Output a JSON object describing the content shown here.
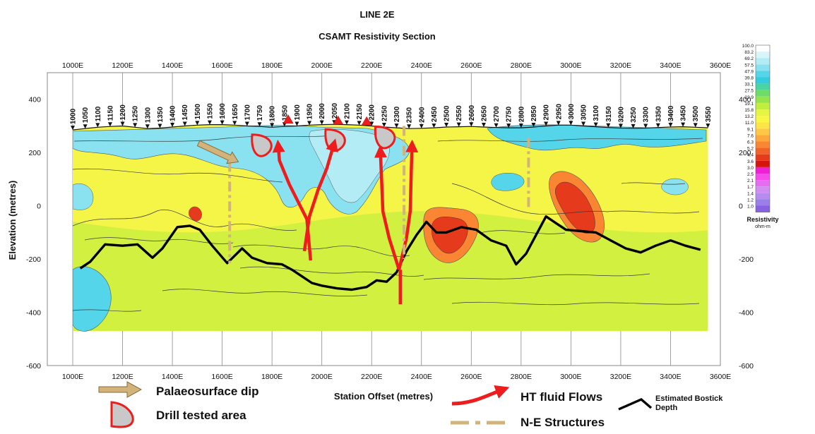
{
  "chart_data": {
    "type": "heatmap",
    "title": "LINE 2E",
    "subtitle": "CSAMT Resistivity Section",
    "xlabel": "Station Offset (metres)",
    "ylabel": "Elevation (metres)",
    "xlim": [
      1000,
      3600
    ],
    "ylim": [
      -600,
      500
    ],
    "xticks": [
      1000,
      1200,
      1400,
      1600,
      1800,
      2000,
      2200,
      2400,
      2600,
      2800,
      3000,
      3200,
      3400,
      3600
    ],
    "xtick_labels": [
      "1000E",
      "1200E",
      "1400E",
      "1600E",
      "1800E",
      "2000E",
      "2200E",
      "2400E",
      "2600E",
      "2800E",
      "3000E",
      "3200E",
      "3400E",
      "3600E"
    ],
    "yticks": [
      400,
      200,
      0,
      -200,
      -400,
      -600
    ],
    "ytick_labels": [
      "400",
      "200",
      "0",
      "-200",
      "-400",
      "-600"
    ],
    "stations": [
      1000,
      1050,
      1100,
      1150,
      1200,
      1250,
      1300,
      1350,
      1400,
      1450,
      1500,
      1550,
      1600,
      1650,
      1700,
      1750,
      1800,
      1850,
      1900,
      1950,
      2000,
      2050,
      2100,
      2150,
      2200,
      2250,
      2300,
      2350,
      2400,
      2450,
      2500,
      2550,
      2600,
      2650,
      2700,
      2750,
      2800,
      2850,
      2900,
      2950,
      3000,
      3050,
      3100,
      3150,
      3200,
      3250,
      3300,
      3350,
      3400,
      3450,
      3500,
      3550
    ],
    "surface_elevation": [
      285,
      290,
      295,
      298,
      300,
      295,
      290,
      292,
      296,
      300,
      303,
      305,
      305,
      303,
      300,
      298,
      295,
      298,
      300,
      303,
      305,
      306,
      305,
      303,
      300,
      296,
      293,
      290,
      291,
      293,
      296,
      297,
      298,
      296,
      294,
      293,
      293,
      296,
      300,
      303,
      303,
      300,
      297,
      294,
      292,
      291,
      292,
      294,
      296,
      297,
      295,
      293
    ],
    "estimated_bostick_depth": {
      "name": "Estimated Bostick Depth",
      "x": [
        1030,
        1070,
        1130,
        1200,
        1260,
        1320,
        1360,
        1420,
        1470,
        1510,
        1560,
        1620,
        1680,
        1720,
        1780,
        1840,
        1880,
        1920,
        1960,
        2000,
        2060,
        2120,
        2180,
        2220,
        2260,
        2300,
        2340,
        2380,
        2420,
        2460,
        2500,
        2560,
        2620,
        2680,
        2740,
        2780,
        2820,
        2860,
        2900,
        2940,
        2980,
        3040,
        3100,
        3160,
        3220,
        3280,
        3340,
        3400,
        3460,
        3520
      ],
      "y": [
        -235,
        -210,
        -145,
        -150,
        -145,
        -195,
        -160,
        -80,
        -75,
        -90,
        -150,
        -215,
        -160,
        -195,
        -215,
        -220,
        -240,
        -265,
        -290,
        -300,
        -310,
        -315,
        -305,
        -280,
        -285,
        -250,
        -170,
        -110,
        -60,
        -100,
        -100,
        -80,
        -90,
        -130,
        -150,
        -220,
        -180,
        -110,
        -40,
        -65,
        -90,
        -95,
        -100,
        -130,
        -160,
        -175,
        -150,
        -130,
        -150,
        -165
      ]
    },
    "colorbar": {
      "title": "Resistivity",
      "unit": "ohm-m",
      "labels": [
        "100.0",
        "83.2",
        "69.2",
        "57.5",
        "47.9",
        "39.8",
        "33.1",
        "27.5",
        "22.9",
        "19.1",
        "15.8",
        "13.2",
        "11.0",
        "9.1",
        "7.6",
        "6.3",
        "5.2",
        "4.4",
        "3.6",
        "3.0",
        "2.5",
        "2.1",
        "1.7",
        "1.4",
        "1.2",
        "1.0"
      ],
      "colors": [
        "#ffffff",
        "#d8f5fb",
        "#b4ecf6",
        "#8ae2f0",
        "#55d5ea",
        "#33cbdd",
        "#4ad49f",
        "#6edc68",
        "#96e44c",
        "#c2ee3f",
        "#e6f541",
        "#f8f746",
        "#fde546",
        "#fec844",
        "#fda83c",
        "#fa8532",
        "#f26128",
        "#e63a1c",
        "#d51410",
        "#ef1fd6",
        "#f44ce9",
        "#e86cf2",
        "#d28df0",
        "#b68cee",
        "#9b7ee8",
        "#8761e2"
      ]
    },
    "features": [
      {
        "name": "drill_tested_area",
        "x": 1760,
        "y": 225
      },
      {
        "name": "drill_tested_area",
        "x": 2055,
        "y": 245
      },
      {
        "name": "drill_tested_area",
        "x": 2255,
        "y": 255
      },
      {
        "name": "ht_fluid_flow",
        "x": [
          1955,
          1940,
          1870,
          1830,
          1825
        ],
        "y": [
          -205,
          -50,
          80,
          170,
          225
        ]
      },
      {
        "name": "ht_fluid_flow",
        "x": [
          1930,
          1950,
          1985,
          2020,
          2048
        ],
        "y": [
          -170,
          -40,
          60,
          140,
          230
        ]
      },
      {
        "name": "ht_fluid_flow",
        "x": [
          2310,
          2270,
          2245,
          2240,
          2235
        ],
        "y": [
          -240,
          -120,
          -20,
          100,
          205
        ]
      },
      {
        "name": "ht_fluid_flow",
        "x": [
          2310,
          2340,
          2355,
          2358,
          2362
        ],
        "y": [
          -240,
          -120,
          -20,
          100,
          225
        ]
      },
      {
        "name": "ht_fluid_flow",
        "x": [
          2315,
          2315
        ],
        "y": [
          -370,
          -240
        ]
      },
      {
        "name": "ne_structure",
        "x": [
          1630,
          1630
        ],
        "y": [
          165,
          -215
        ]
      },
      {
        "name": "ne_structure",
        "x": [
          2330,
          2330
        ],
        "y": [
          300,
          -200
        ]
      },
      {
        "name": "ne_structure",
        "x": [
          2830,
          2830
        ],
        "y": [
          255,
          -15
        ]
      },
      {
        "name": "palaeosurface_dip",
        "x": [
          1505,
          1665
        ],
        "y": [
          235,
          165
        ]
      }
    ],
    "legend": [
      {
        "label": "Palaeosurface dip",
        "symbol": "arrow"
      },
      {
        "label": "Drill tested area",
        "symbol": "half-disc"
      },
      {
        "label": "HT fluid Flows",
        "symbol": "curved-arrow"
      },
      {
        "label": "N-E Structures",
        "symbol": "dash-dot"
      },
      {
        "label": "Estimated Bostick Depth",
        "symbol": "line"
      }
    ],
    "grid": true
  }
}
